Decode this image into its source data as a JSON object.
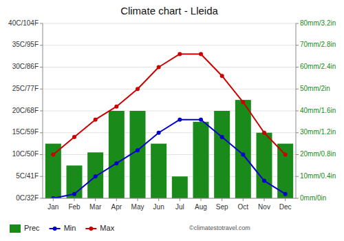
{
  "chart_data": {
    "type": "combo",
    "title": "Climate chart - Lleida",
    "categories": [
      "Jan",
      "Feb",
      "Mar",
      "Apr",
      "May",
      "Jun",
      "Jul",
      "Aug",
      "Sep",
      "Oct",
      "Nov",
      "Dec"
    ],
    "series": [
      {
        "name": "Prec",
        "type": "bar",
        "axis": "y2",
        "color": "#1a8a1a",
        "values": [
          25,
          15,
          21,
          40,
          40,
          25,
          10,
          35,
          40,
          45,
          30,
          25
        ]
      },
      {
        "name": "Min",
        "type": "line",
        "color": "#0000cc",
        "marker": "circle",
        "values": [
          0,
          1,
          5,
          8,
          11,
          15,
          18,
          18,
          14,
          10,
          4,
          1
        ]
      },
      {
        "name": "Max",
        "type": "line",
        "color": "#cc0000",
        "marker": "circle",
        "values": [
          10,
          14,
          18,
          21,
          25,
          30,
          33,
          33,
          28,
          22,
          15,
          10
        ]
      }
    ],
    "ylim": [
      0,
      40
    ],
    "yticks": [
      {
        "value": 0,
        "label": "0C/32F"
      },
      {
        "value": 5,
        "label": "5C/41F"
      },
      {
        "value": 10,
        "label": "10C/50F"
      },
      {
        "value": 15,
        "label": "15C/59F"
      },
      {
        "value": 20,
        "label": "20C/68F"
      },
      {
        "value": 25,
        "label": "25C/77F"
      },
      {
        "value": 30,
        "label": "30C/86F"
      },
      {
        "value": 35,
        "label": "35C/95F"
      },
      {
        "value": 40,
        "label": "40C/104F"
      }
    ],
    "y2lim": [
      0,
      80
    ],
    "y2ticks": [
      {
        "value": 0,
        "label": "0mm/0in"
      },
      {
        "value": 10,
        "label": "10mm/0.4in"
      },
      {
        "value": 20,
        "label": "20mm/0.8in"
      },
      {
        "value": 30,
        "label": "30mm/1.2in"
      },
      {
        "value": 40,
        "label": "40mm/1.6in"
      },
      {
        "value": 50,
        "label": "50mm/2in"
      },
      {
        "value": 60,
        "label": "60mm/2.4in"
      },
      {
        "value": 70,
        "label": "70mm/2.8in"
      },
      {
        "value": 80,
        "label": "80mm/3.2in"
      }
    ],
    "grid": true,
    "legend": "bottom",
    "annotations": [
      "©climatestotravel.com"
    ]
  }
}
